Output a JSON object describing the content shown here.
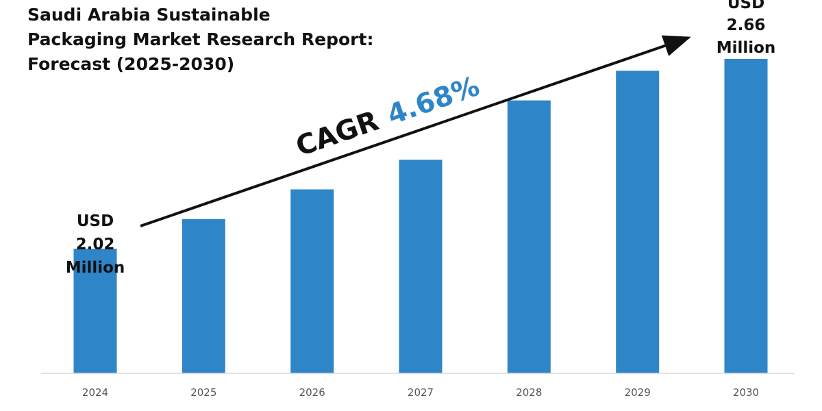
{
  "chart_data": {
    "type": "bar",
    "title_lines": [
      "Saudi Arabia Sustainable",
      "Packaging Market Research Report:",
      "Forecast (2025-2030)"
    ],
    "categories": [
      "2024",
      "2025",
      "2026",
      "2027",
      "2028",
      "2029",
      "2030"
    ],
    "values": [
      2.02,
      2.12,
      2.22,
      2.32,
      2.52,
      2.62,
      2.66
    ],
    "ylim": [
      1.6,
      2.7
    ],
    "color": "#2e86c8",
    "start_label": {
      "line1": "USD",
      "line2": "2.02",
      "line3": "Million"
    },
    "end_label": {
      "line1": "USD",
      "line2": "2.66",
      "line3": "Million"
    },
    "cagr": {
      "prefix": "CAGR",
      "value": "4.68%"
    }
  }
}
